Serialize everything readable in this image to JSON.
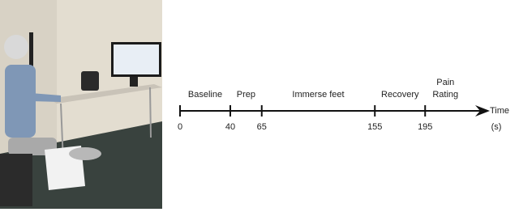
{
  "timeline": {
    "phases": [
      "Baseline",
      "Prep",
      "Immerse feet",
      "Recovery",
      "Pain Rating"
    ],
    "ticks": [
      0,
      40,
      65,
      155,
      195
    ],
    "axis_label": "Time",
    "unit": "(s)"
  }
}
